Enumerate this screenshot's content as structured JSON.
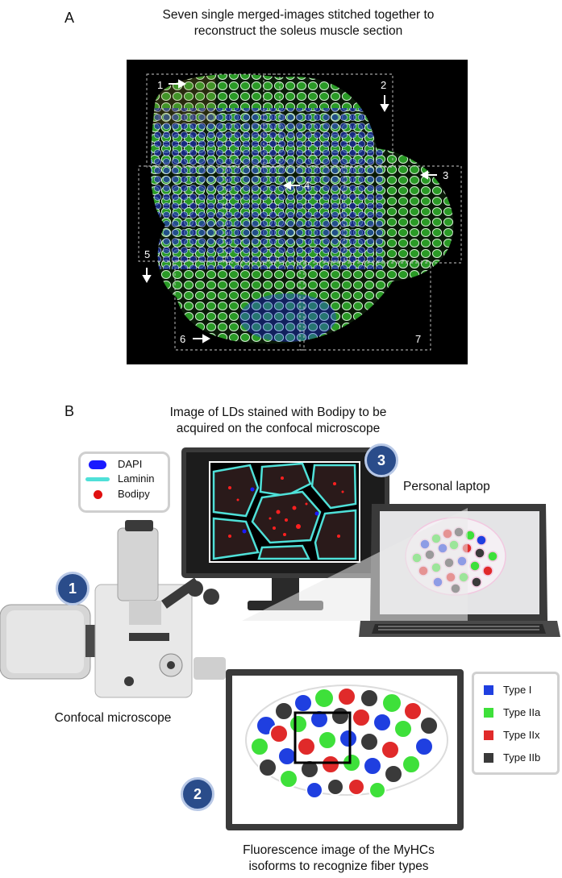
{
  "panel_a": {
    "letter": "A",
    "title_line1": "Seven single merged-images stitched together to",
    "title_line2": "reconstruct the soleus muscle section",
    "tiles": [
      "1",
      "2",
      "3",
      "4",
      "5",
      "6",
      "7"
    ]
  },
  "panel_b": {
    "letter": "B",
    "monitor_caption_line1": "Image of LDs stained with Bodipy to be",
    "monitor_caption_line2": "acquired on the confocal microscope",
    "laptop_caption": "Personal laptop",
    "microscope_caption": "Confocal microscope",
    "fiber_caption_line1": "Fluorescence image of the MyHCs",
    "fiber_caption_line2": "isoforms to recognize fiber types",
    "steps": [
      "1",
      "2",
      "3"
    ],
    "stain_legend": [
      {
        "label": "DAPI",
        "color": "#1a1aff"
      },
      {
        "label": "Laminin",
        "color": "#4fe0d8"
      },
      {
        "label": "Bodipy",
        "color": "#e01010"
      }
    ],
    "fiber_legend": [
      {
        "label": "Type I",
        "color": "#1f3fe0"
      },
      {
        "label": "Type IIa",
        "color": "#3ee03a"
      },
      {
        "label": "Type IIx",
        "color": "#e02a2a"
      },
      {
        "label": "Type IIb",
        "color": "#3a3a3a"
      }
    ]
  }
}
